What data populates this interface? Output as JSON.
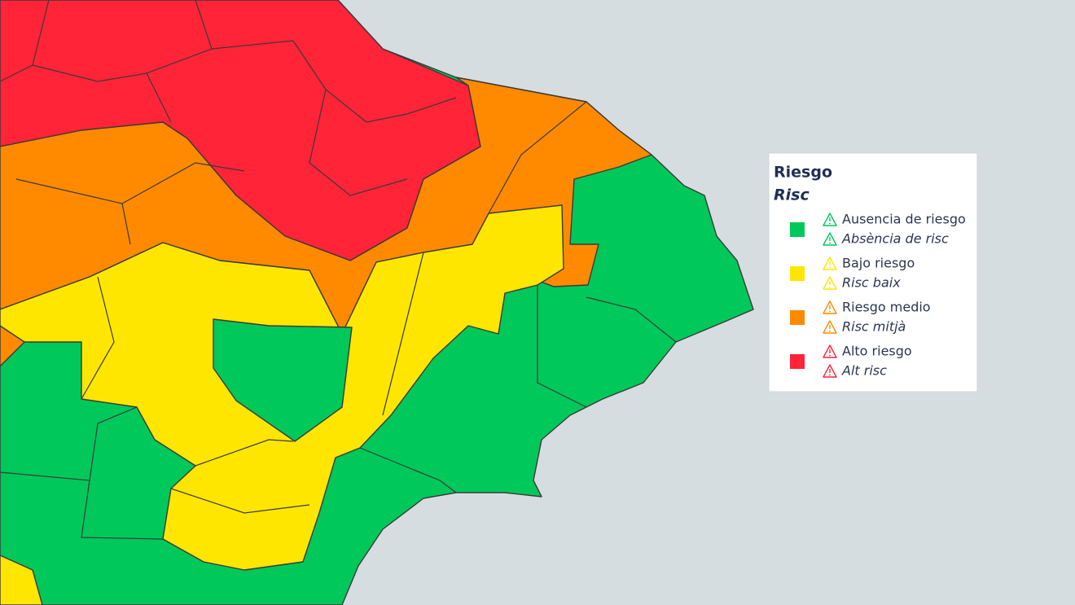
{
  "legend": {
    "title": "Riesgo",
    "subtitle": "Risc",
    "items": [
      {
        "color": "#00c85a",
        "label": "Ausencia de riesgo",
        "label_alt": "Absència de risc"
      },
      {
        "color": "#ffe600",
        "label": "Bajo riesgo",
        "label_alt": "Risc baix"
      },
      {
        "color": "#ff8a00",
        "label": "Riesgo medio",
        "label_alt": "Risc mitjà"
      },
      {
        "color": "#ff2437",
        "label": "Alto riesgo",
        "label_alt": "Alt risc"
      }
    ]
  }
}
